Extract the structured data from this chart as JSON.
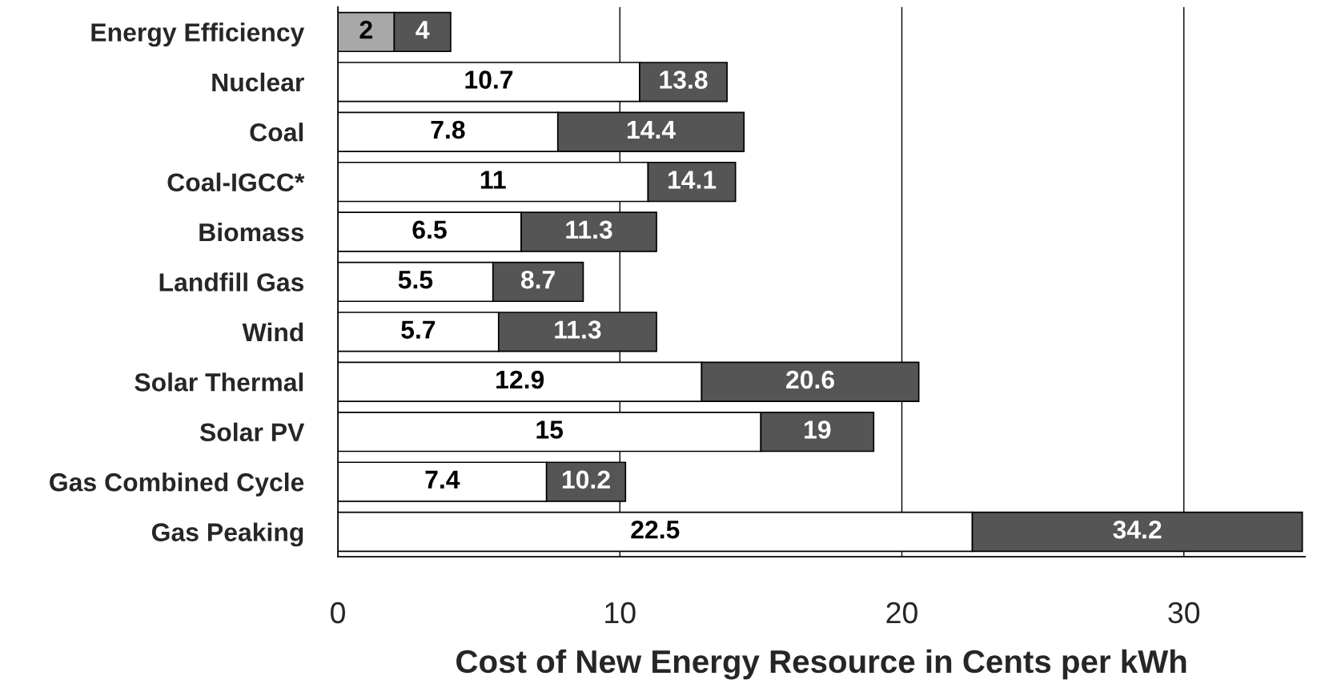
{
  "chart_data": {
    "type": "bar",
    "orientation": "horizontal",
    "stacked": true,
    "xlabel": "Cost of New Energy Resource in Cents per kWh",
    "categories": [
      "Energy Efficiency",
      "Nuclear",
      "Coal",
      "Coal-IGCC*",
      "Biomass",
      "Landfill Gas",
      "Wind",
      "Solar Thermal",
      "Solar PV",
      "Gas Combined Cycle",
      "Gas Peaking"
    ],
    "series": [
      {
        "colors": [
          "#a8a8a8",
          "#ffffff",
          "#ffffff",
          "#ffffff",
          "#ffffff",
          "#ffffff",
          "#ffffff",
          "#ffffff",
          "#ffffff",
          "#ffffff",
          "#ffffff"
        ],
        "values": [
          2,
          10.7,
          7.8,
          11,
          6.5,
          5.5,
          5.7,
          12.9,
          15,
          7.4,
          22.5
        ],
        "value_labels": [
          "2",
          "10.7",
          "7.8",
          "11",
          "6.5",
          "5.5",
          "5.7",
          "12.9",
          "15",
          "7.4",
          "22.5"
        ]
      },
      {
        "color": "#555555",
        "values": [
          2,
          3.1,
          6.6,
          3.1,
          4.8,
          3.2,
          5.6,
          7.7,
          4,
          2.8,
          11.7
        ]
      }
    ],
    "totals": [
      "4",
      "13.8",
      "14.4",
      "14.1",
      "11.3",
      "8.7",
      "11.3",
      "20.6",
      "19",
      "10.2",
      "34.2"
    ],
    "xlim": [
      0,
      34.3
    ],
    "xticks": [
      0,
      10,
      20,
      30
    ],
    "grid": "x"
  }
}
